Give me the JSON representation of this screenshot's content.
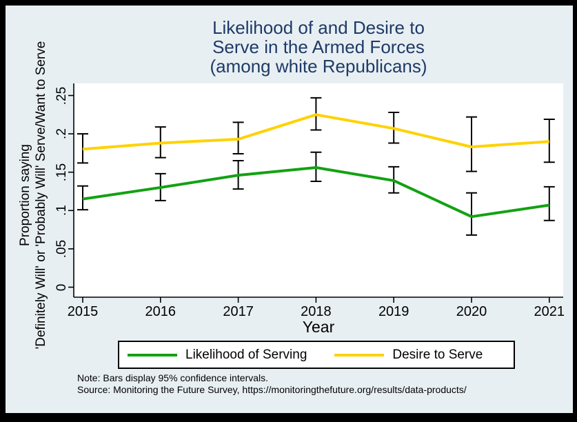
{
  "window": {
    "background": "#e8eff3",
    "frame_color": "#000000"
  },
  "title": {
    "lines": [
      "Likelihood of and Desire to",
      "Serve in the Armed Forces",
      "(among white Republicans)"
    ],
    "color": "#1e3a66"
  },
  "y_axis": {
    "title_lines": [
      "Proportion saying",
      "'Definitely Will' or 'Probably Will' Serve/Want to Serve"
    ],
    "ticks": [
      "0",
      ".05",
      ".1",
      ".15",
      ".2",
      ".25"
    ],
    "tick_values": [
      0,
      0.05,
      0.1,
      0.15,
      0.2,
      0.25
    ]
  },
  "x_axis": {
    "title": "Year",
    "ticks": [
      "2015",
      "2016",
      "2017",
      "2018",
      "2019",
      "2020",
      "2021"
    ]
  },
  "legend": {
    "items": [
      {
        "label": "Likelihood of Serving",
        "color": "#12a212"
      },
      {
        "label": "Desire to Serve",
        "color": "#ffd200"
      }
    ]
  },
  "notes": [
    "Note: Bars display 95% confidence intervals.",
    "Source: Monitoring the Future Survey, https://monitoringthefuture.org/results/data-products/"
  ],
  "chart_data": {
    "type": "line",
    "title": "Likelihood of and Desire to Serve in the Armed Forces (among white Republicans)",
    "xlabel": "Year",
    "ylabel": "Proportion saying 'Definitely Will' or 'Probably Will' Serve/Want to Serve",
    "x": [
      2015,
      2016,
      2017,
      2018,
      2019,
      2020,
      2021
    ],
    "ylim": [
      0,
      0.25
    ],
    "error_bars": "95% confidence intervals",
    "legend_position": "bottom",
    "grid": false,
    "series": [
      {
        "name": "Likelihood of Serving",
        "color": "#12a212",
        "values": [
          0.115,
          0.13,
          0.146,
          0.156,
          0.139,
          0.092,
          0.107
        ],
        "ci_low": [
          0.101,
          0.113,
          0.128,
          0.138,
          0.123,
          0.068,
          0.087
        ],
        "ci_high": [
          0.132,
          0.148,
          0.165,
          0.176,
          0.157,
          0.123,
          0.131
        ]
      },
      {
        "name": "Desire to Serve",
        "color": "#ffd200",
        "values": [
          0.18,
          0.188,
          0.193,
          0.225,
          0.207,
          0.183,
          0.19
        ],
        "ci_low": [
          0.162,
          0.169,
          0.174,
          0.205,
          0.188,
          0.151,
          0.163
        ],
        "ci_high": [
          0.2,
          0.209,
          0.215,
          0.247,
          0.228,
          0.222,
          0.219
        ]
      }
    ]
  }
}
